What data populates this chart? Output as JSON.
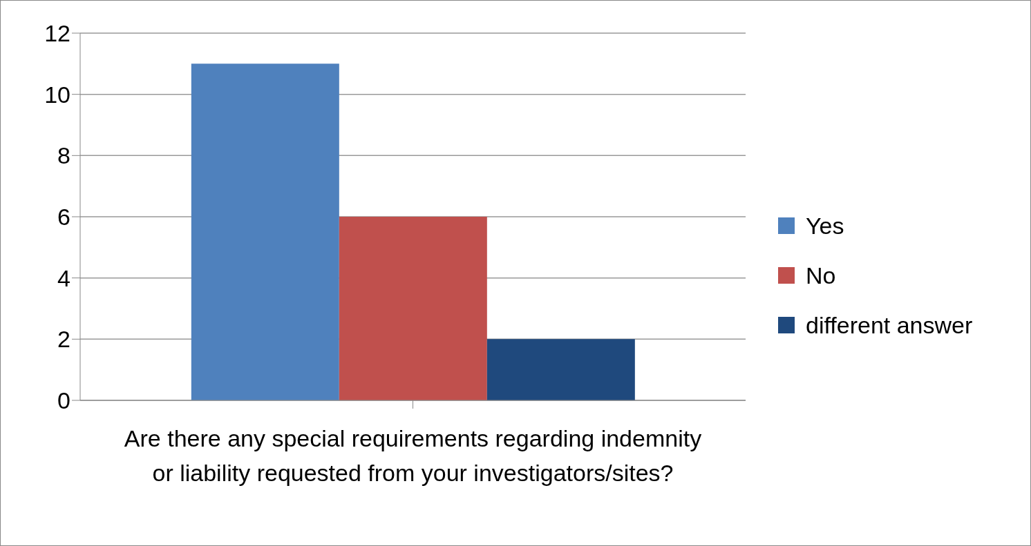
{
  "chart_data": {
    "type": "bar",
    "categories": [
      "Are there any special requirements regarding indemnity or liability requested from your investigators/sites?"
    ],
    "series": [
      {
        "name": "Yes",
        "color": "#4f81bd",
        "values": [
          11
        ]
      },
      {
        "name": "No",
        "color": "#c0504d",
        "values": [
          6
        ]
      },
      {
        "name": "different answer",
        "color": "#1f497d",
        "values": [
          2
        ]
      }
    ],
    "ylim": [
      0,
      12
    ],
    "yticks": [
      0,
      2,
      4,
      6,
      8,
      10,
      12
    ],
    "grid": "y",
    "legend": "right"
  }
}
